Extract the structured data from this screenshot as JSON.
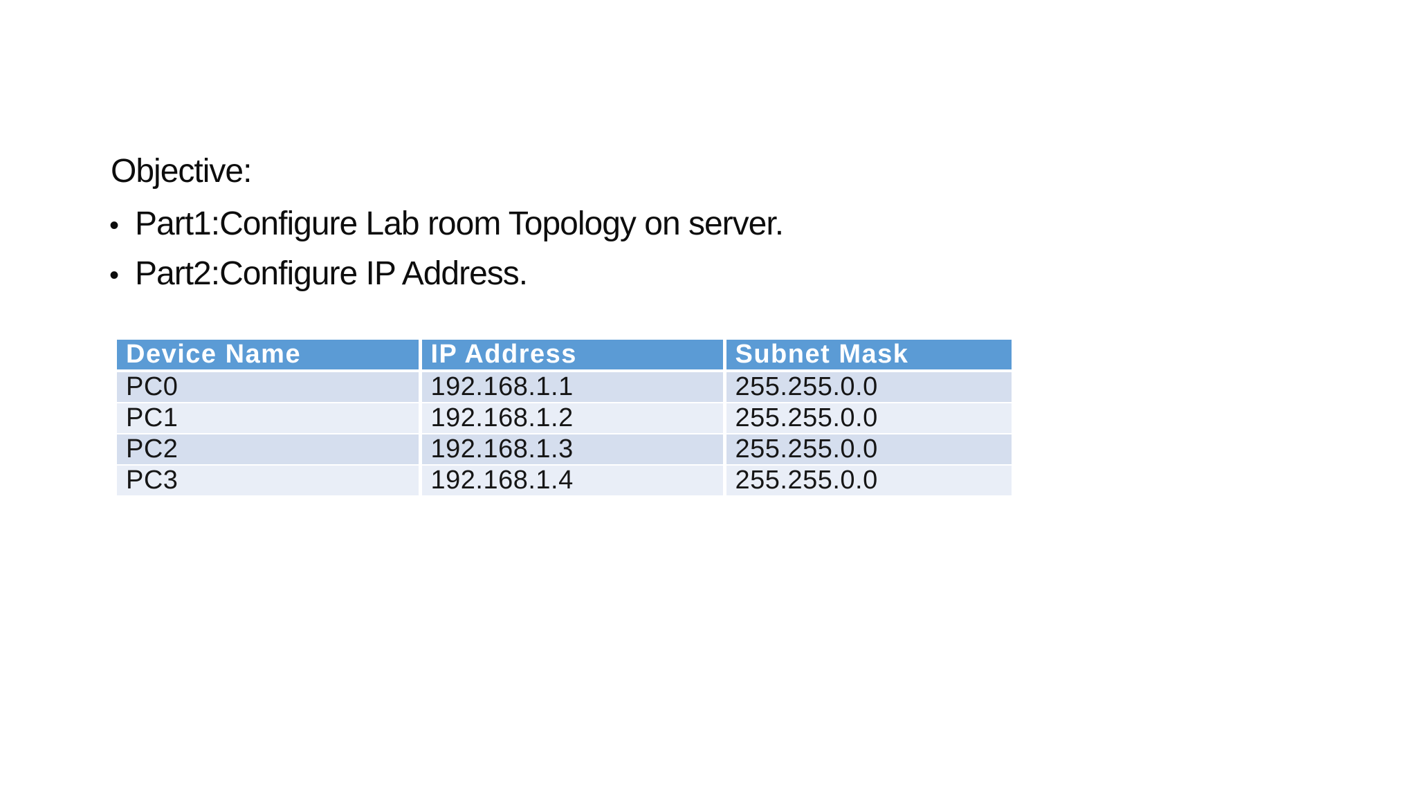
{
  "slide": {
    "heading": "Objective:",
    "bullet_char": "•",
    "bullets": [
      "Part1:Configure Lab room Topology on server.",
      "Part2:Configure IP Address."
    ]
  },
  "table": {
    "headers": [
      "Device Name",
      "IP Address",
      "Subnet Mask"
    ],
    "rows": [
      [
        "PC0",
        "192.168.1.1",
        "255.255.0.0"
      ],
      [
        "PC1",
        "192.168.1.2",
        "255.255.0.0"
      ],
      [
        "PC2",
        "192.168.1.3",
        "255.255.0.0"
      ],
      [
        "PC3",
        "192.168.1.4",
        "255.255.0.0"
      ]
    ],
    "colors": {
      "header_bg": "#5B9BD5",
      "header_text": "#FFFFFF",
      "band_dark": "#D5DEEE",
      "band_light": "#E9EEF7"
    }
  }
}
